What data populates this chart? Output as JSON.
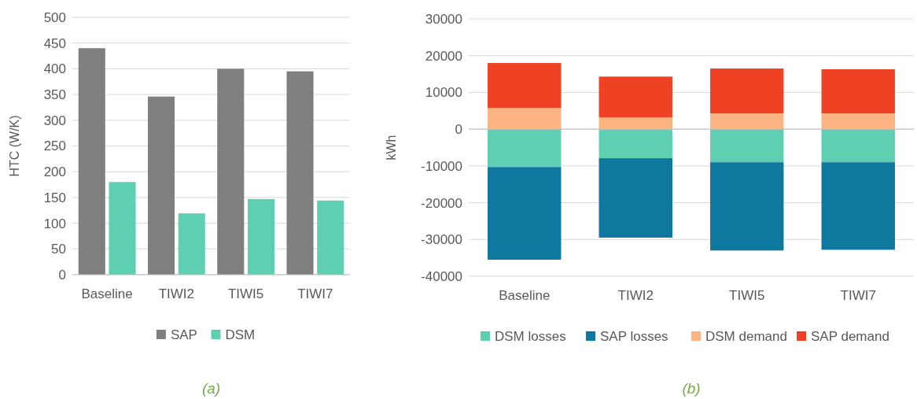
{
  "chart_data": [
    {
      "type": "bar",
      "ylabel": "HTC (W/K)",
      "categories": [
        "Baseline",
        "TIWI2",
        "TIWI5",
        "TIWI7"
      ],
      "series": [
        {
          "name": "SAP",
          "color": "#7f7f7f",
          "values": [
            440,
            346,
            400,
            395
          ]
        },
        {
          "name": "DSM",
          "color": "#5ecfb1",
          "values": [
            180,
            119,
            147,
            144
          ]
        }
      ],
      "ylim": [
        0,
        500
      ],
      "yticks": [
        0,
        50,
        100,
        150,
        200,
        250,
        300,
        350,
        400,
        450,
        500
      ],
      "grid": "y",
      "legend": "bottom",
      "annotations": [
        "(a)"
      ]
    },
    {
      "type": "bar",
      "ylabel": "kWh",
      "categories": [
        "Baseline",
        "TIWI2",
        "TIWI5",
        "TIWI7"
      ],
      "stacked": true,
      "series": [
        {
          "name": "DSM losses",
          "color": "#5ecfb1",
          "values": [
            -10300,
            -7900,
            -9000,
            -9000
          ]
        },
        {
          "name": "SAP losses",
          "color": "#0e789e",
          "values": [
            -25200,
            -21600,
            -24000,
            -23800
          ]
        },
        {
          "name": "DSM demand",
          "color": "#fcb482",
          "values": [
            5800,
            3200,
            4300,
            4300
          ]
        },
        {
          "name": "SAP demand",
          "color": "#ef4123",
          "values": [
            12200,
            11100,
            12200,
            12000
          ]
        }
      ],
      "ylim": [
        -40000,
        30000
      ],
      "yticks": [
        -40000,
        -30000,
        -20000,
        -10000,
        0,
        10000,
        20000,
        30000
      ],
      "grid": "y",
      "legend": "bottom",
      "annotations": [
        "(b)"
      ]
    }
  ]
}
